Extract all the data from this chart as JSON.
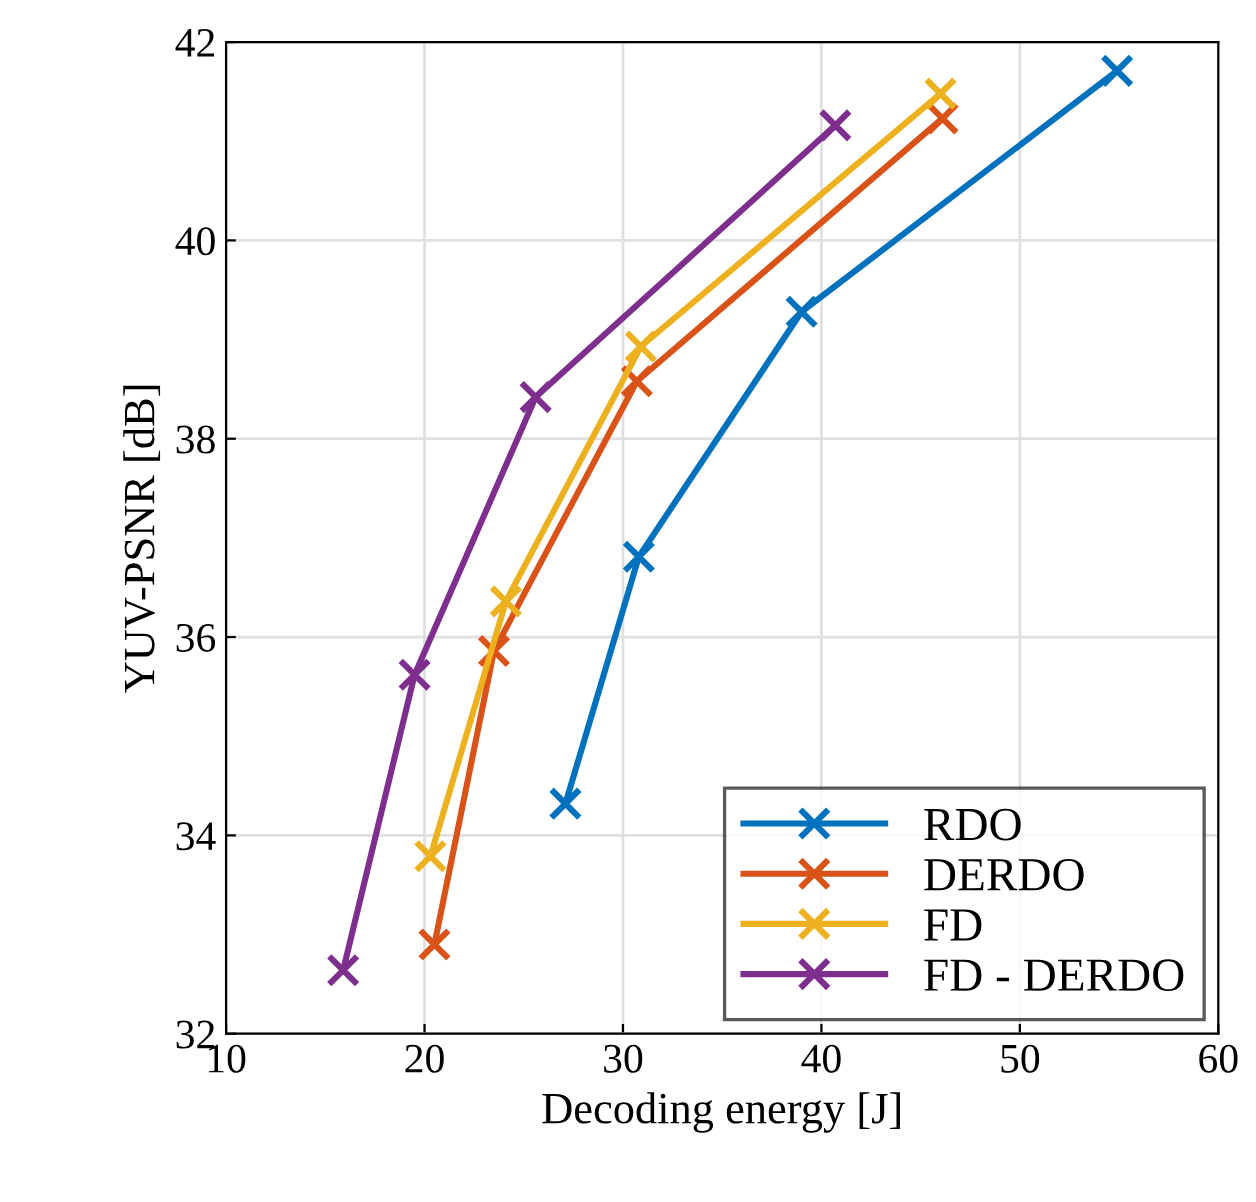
{
  "chart_data": {
    "type": "line",
    "xlabel": "Decoding energy [J]",
    "ylabel": "YUV-PSNR [dB]",
    "xlim": [
      10,
      60
    ],
    "xticks": [
      10,
      20,
      30,
      40,
      50,
      60
    ],
    "ylim": [
      32,
      42
    ],
    "yticks": [
      32,
      34,
      36,
      38,
      40,
      42
    ],
    "grid": true,
    "legend": "bottom right",
    "marker": "cross",
    "line_style": "solid",
    "series": [
      {
        "name": "RDO",
        "color": "#0072bd",
        "x": [
          27.1,
          30.8,
          39.0,
          54.9
        ],
        "values": [
          34.32,
          36.81,
          39.28,
          41.71
        ]
      },
      {
        "name": "DERDO",
        "color": "#d95319",
        "x": [
          20.5,
          23.5,
          30.7,
          46.1
        ],
        "values": [
          32.9,
          35.86,
          38.58,
          41.23
        ]
      },
      {
        "name": "FD",
        "color": "#edb120",
        "x": [
          20.3,
          24.1,
          30.9,
          46.0
        ],
        "values": [
          33.79,
          36.36,
          38.93,
          41.48
        ]
      },
      {
        "name": "FD - DERDO",
        "color": "#7e2f8e",
        "x": [
          15.9,
          19.5,
          25.6,
          40.7
        ],
        "values": [
          32.64,
          35.62,
          38.42,
          41.16
        ]
      }
    ]
  }
}
